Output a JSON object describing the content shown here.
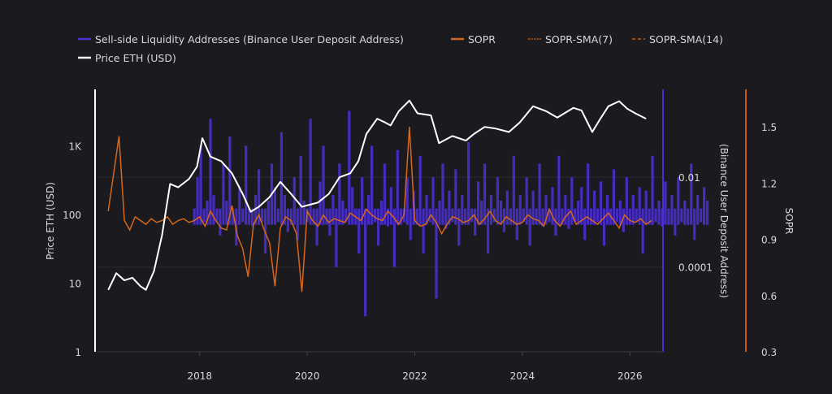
{
  "chart_data": {
    "type": "line",
    "title": "",
    "legend": {
      "placement": "top-left",
      "items": [
        {
          "label": "Sell-side Liquidity Addresses (Binance User Deposit Address)",
          "color": "#4b2fd0",
          "style": "solid"
        },
        {
          "label": "SOPR",
          "color": "#d7671c",
          "style": "solid"
        },
        {
          "label": "SOPR-SMA(7)",
          "color": "#c75b10",
          "style": "dotted"
        },
        {
          "label": "SOPR-SMA(14)",
          "color": "#c75b10",
          "style": "dashed"
        },
        {
          "label": "Price ETH (USD)",
          "color": "#ffffff",
          "style": "solid"
        }
      ]
    },
    "x_axis": {
      "range": [
        2016.1,
        2026.6
      ],
      "ticks": [
        "2018",
        "2020",
        "2022",
        "2024",
        "2026"
      ],
      "tick_values": [
        2018,
        2020,
        2022,
        2024,
        2026
      ]
    },
    "y_left": {
      "label": "Price ETH (USD)",
      "scale": "log",
      "range": [
        1,
        6700
      ],
      "ticks": [
        "1",
        "10",
        "100",
        "1K"
      ],
      "tick_values": [
        1,
        10,
        100,
        1000
      ]
    },
    "y_mid": {
      "label": "(Binance User Deposit Address)",
      "scale": "log",
      "range": [
        1.3e-06,
        0.9
      ],
      "ticks": [
        "0.0001",
        "0.01"
      ],
      "tick_values": [
        0.0001,
        0.01
      ]
    },
    "y_right": {
      "label": "SOPR",
      "scale": "linear",
      "range": [
        0.3,
        1.7
      ],
      "ticks": [
        "0.3",
        "0.6",
        "0.9",
        "1.2",
        "1.5"
      ],
      "tick_values": [
        0.3,
        0.6,
        0.9,
        1.2,
        1.5
      ]
    },
    "price": {
      "x": [
        2016.3,
        2016.45,
        2016.6,
        2016.75,
        2016.9,
        2017.0,
        2017.15,
        2017.3,
        2017.45,
        2017.6,
        2017.8,
        2017.95,
        2018.05,
        2018.2,
        2018.4,
        2018.6,
        2018.8,
        2018.95,
        2019.1,
        2019.3,
        2019.5,
        2019.7,
        2019.9,
        2020.2,
        2020.4,
        2020.6,
        2020.8,
        2020.95,
        2021.1,
        2021.3,
        2021.45,
        2021.55,
        2021.7,
        2021.9,
        2022.05,
        2022.3,
        2022.45,
        2022.7,
        2022.95,
        2023.1,
        2023.3,
        2023.5,
        2023.75,
        2023.95,
        2024.2,
        2024.45,
        2024.65,
        2024.95,
        2025.1,
        2025.3,
        2025.45,
        2025.6,
        2025.8,
        2025.95,
        2026.1,
        2026.3
      ],
      "values": [
        8,
        14,
        11,
        12,
        9,
        8,
        15,
        50,
        280,
        250,
        330,
        500,
        1300,
        700,
        600,
        400,
        200,
        110,
        130,
        180,
        300,
        200,
        130,
        150,
        200,
        350,
        400,
        600,
        1500,
        2500,
        2200,
        2000,
        3200,
        4600,
        3000,
        2800,
        1100,
        1400,
        1200,
        1500,
        1900,
        1800,
        1600,
        2200,
        3800,
        3200,
        2600,
        3600,
        3300,
        1600,
        2500,
        3800,
        4500,
        3500,
        3000,
        2500
      ]
    },
    "sopr": {
      "x_start": 2016.3,
      "x_step": 0.1,
      "values": [
        1.05,
        1.25,
        1.45,
        1.0,
        0.95,
        1.02,
        1.0,
        0.98,
        1.01,
        0.99,
        1.0,
        1.02,
        0.98,
        1.0,
        1.01,
        0.99,
        1.0,
        1.02,
        0.97,
        1.05,
        1.0,
        0.96,
        0.95,
        1.08,
        0.92,
        0.85,
        0.7,
        0.98,
        1.03,
        0.95,
        0.88,
        0.65,
        0.96,
        1.02,
        1.0,
        0.93,
        0.62,
        1.05,
        1.0,
        0.97,
        1.03,
        0.99,
        1.01,
        1.0,
        0.99,
        1.04,
        1.02,
        1.0,
        1.06,
        1.03,
        1.01,
        1.0,
        1.05,
        1.02,
        0.98,
        1.03,
        1.5,
        1.0,
        0.97,
        0.98,
        1.03,
        0.99,
        0.93,
        0.98,
        1.02,
        1.01,
        0.99,
        1.0,
        1.03,
        0.98,
        1.01,
        1.05,
        1.0,
        0.98,
        1.02,
        1.0,
        0.98,
        0.99,
        1.03,
        1.01,
        1.0,
        0.97,
        1.06,
        1.0,
        0.97,
        1.02,
        1.05,
        0.98,
        1.0,
        1.02,
        1.0,
        0.98,
        1.01,
        1.04,
        1.0,
        0.96,
        1.03,
        1.0,
        0.99,
        1.01,
        0.98,
        1.0
      ]
    },
    "liquidity": {
      "x_start": 2017.9,
      "x_step": 0.06,
      "values": [
        0.002,
        0.01,
        0.05,
        0.001,
        0.003,
        0.2,
        0.004,
        0.001,
        0.0005,
        0.02,
        0.003,
        0.08,
        0.002,
        0.0003,
        0.006,
        0.001,
        0.05,
        0.002,
        0.0008,
        0.004,
        0.015,
        0.001,
        0.0002,
        0.003,
        0.02,
        0.006,
        0.001,
        0.1,
        0.004,
        0.0006,
        0.002,
        0.01,
        0.0004,
        0.03,
        0.003,
        0.001,
        0.2,
        0.002,
        0.0003,
        0.008,
        0.05,
        0.002,
        0.0005,
        0.004,
        0.0001,
        0.02,
        0.003,
        0.001,
        0.3,
        0.006,
        0.002,
        0.0002,
        0.01,
        8e-06,
        0.004,
        0.05,
        0.001,
        0.0003,
        0.003,
        0.02,
        0.0008,
        0.006,
        0.0001,
        0.04,
        0.002,
        0.001,
        0.01,
        0.0004,
        0.005,
        0.002,
        0.03,
        0.0002,
        0.004,
        0.001,
        0.01,
        2e-05,
        0.003,
        0.02,
        0.0007,
        0.005,
        0.001,
        0.015,
        0.0003,
        0.004,
        0.002,
        0.06,
        0.001,
        0.0005,
        0.008,
        0.003,
        0.02,
        0.0002,
        0.004,
        0.001,
        0.01,
        0.003,
        0.0006,
        0.005,
        0.002,
        0.03,
        0.0004,
        0.004,
        0.001,
        0.01,
        0.0003,
        0.005,
        0.002,
        0.02,
        0.0008,
        0.004,
        0.001,
        0.006,
        0.0005,
        0.03,
        0.002,
        0.004,
        0.0007,
        0.01,
        0.001,
        0.003,
        0.006,
        0.0004,
        0.02,
        0.002,
        0.005,
        0.001,
        0.008,
        0.0003,
        0.004,
        0.002,
        0.015,
        0.001,
        0.003,
        0.0006,
        0.01,
        0.002,
        0.004,
        0.001,
        0.006,
        0.0002,
        0.005,
        0.002,
        0.03,
        0.001,
        0.003,
        0.0008,
        0.008,
        0.002,
        0.004,
        0.0005,
        0.01,
        0.001,
        0.003,
        0.002,
        0.02,
        0.0004,
        0.004,
        0.001,
        0.006,
        0.003
      ]
    }
  }
}
